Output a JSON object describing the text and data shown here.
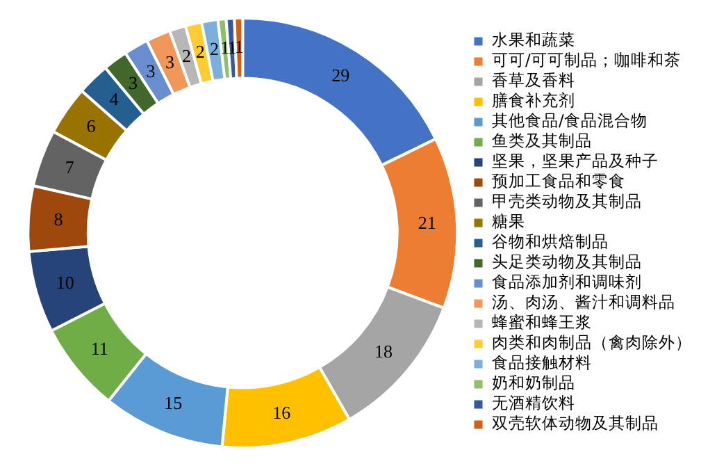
{
  "chart_data": {
    "type": "donut",
    "categories": [
      "水果和蔬菜",
      "可可/可可制品；咖啡和茶",
      "香草及香料",
      "膳食补充剂",
      "其他食品/食品混合物",
      "鱼类及其制品",
      "坚果，坚果产品及种子",
      "预加工食品和零食",
      "甲壳类动物及其制品",
      "糖果",
      "谷物和烘焙制品",
      "头足类动物及其制品",
      "食品添加剂和调味剂",
      "汤、肉汤、酱汁和调料品",
      "蜂蜜和蜂王浆",
      "肉类和肉制品（禽肉除外）",
      "食品接触材料",
      "奶和奶制品",
      "无酒精饮料",
      "双壳软体动物及其制品"
    ],
    "values": [
      29,
      21,
      18,
      16,
      15,
      11,
      10,
      8,
      7,
      6,
      4,
      3,
      3,
      3,
      2,
      2,
      2,
      1,
      1,
      1
    ],
    "colors": [
      "#4472c4",
      "#ed7d31",
      "#a5a5a5",
      "#ffc000",
      "#5b9bd5",
      "#70ad47",
      "#264478",
      "#9e480e",
      "#636363",
      "#997300",
      "#255e91",
      "#43682b",
      "#698ed0",
      "#f1975a",
      "#b7b7b7",
      "#ffcd33",
      "#7cafdd",
      "#8cc168",
      "#335aa1",
      "#d26012"
    ],
    "data_labels": true,
    "legend": "right"
  }
}
